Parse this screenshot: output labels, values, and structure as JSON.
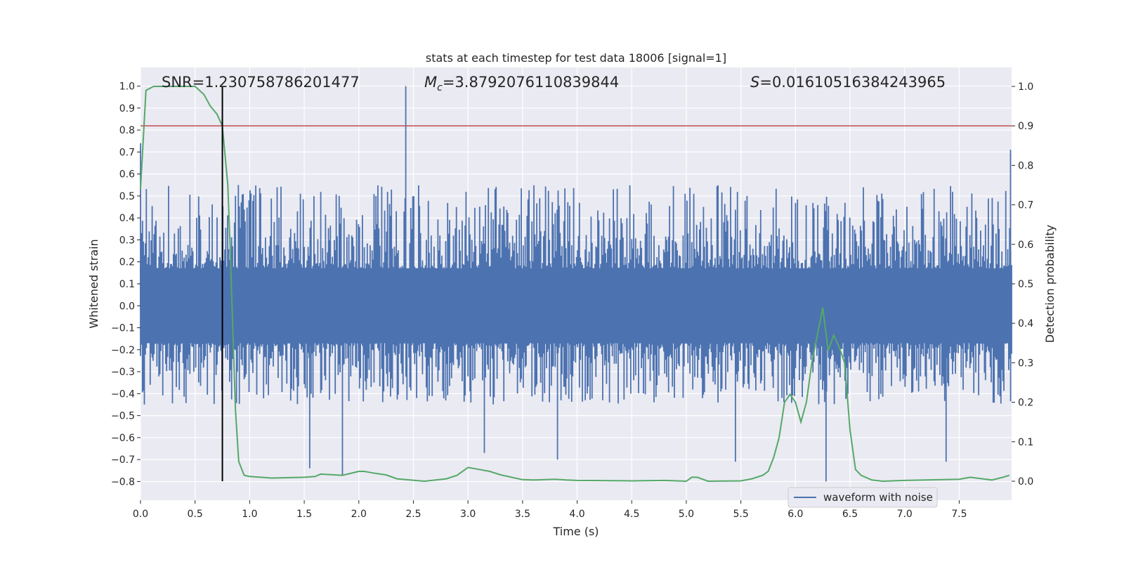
{
  "chart_data": {
    "type": "line",
    "title": "stats at each timestep for test data 18006 [signal=1]",
    "xlabel": "Time (s)",
    "ylabel": "Whitened strain",
    "y2label": "Detection probability",
    "xlim": [
      0.0,
      7.98
    ],
    "ylim": [
      -0.885,
      1.085
    ],
    "y2lim": [
      -0.048,
      1.048
    ],
    "xticks": [
      "0.0",
      "0.5",
      "1.0",
      "1.5",
      "2.0",
      "2.5",
      "3.0",
      "3.5",
      "4.0",
      "4.5",
      "5.0",
      "5.5",
      "6.0",
      "6.5",
      "7.0",
      "7.5"
    ],
    "yticks": [
      "-0.8",
      "-0.7",
      "-0.6",
      "-0.5",
      "-0.4",
      "-0.3",
      "-0.2",
      "-0.1",
      "0.0",
      "0.1",
      "0.2",
      "0.3",
      "0.4",
      "0.5",
      "0.6",
      "0.7",
      "0.8",
      "0.9",
      "1.0"
    ],
    "y2ticks": [
      "0.0",
      "0.1",
      "0.2",
      "0.3",
      "0.4",
      "0.5",
      "0.6",
      "0.7",
      "0.8",
      "0.9",
      "1.0"
    ],
    "grid": true,
    "legend": {
      "position": "lower-right",
      "entries": [
        "waveform with noise"
      ]
    },
    "annotations": {
      "snr": "SNR=1.230758786201477",
      "mc_symbol": "M",
      "mc_sub": "c",
      "mc_value": "=3.8792076110839844",
      "s_symbol": "S",
      "s_value": "=0.01610516384243965"
    },
    "series": [
      {
        "name": "waveform with noise",
        "kind": "strain",
        "color": "#4c72b0",
        "sample_rate_hz": 2048,
        "dense_envelope": [
          -0.17,
          0.17
        ],
        "typical_range": [
          -0.45,
          0.55
        ],
        "peaks": [
          {
            "x": 2.43,
            "y": 1.0
          },
          {
            "x": 7.97,
            "y": 0.71
          },
          {
            "x": 0.0,
            "y": 0.74
          },
          {
            "x": 1.55,
            "y": -0.74
          },
          {
            "x": 1.85,
            "y": -0.77
          },
          {
            "x": 3.15,
            "y": -0.67
          },
          {
            "x": 3.82,
            "y": -0.7
          },
          {
            "x": 5.45,
            "y": -0.71
          },
          {
            "x": 6.28,
            "y": -0.8
          },
          {
            "x": 7.38,
            "y": -0.71
          }
        ]
      },
      {
        "kind": "detection-probability",
        "color": "#55a868",
        "axis": "right",
        "x": [
          0.0,
          0.05,
          0.12,
          0.2,
          0.3,
          0.4,
          0.5,
          0.58,
          0.64,
          0.7,
          0.75,
          0.8,
          0.82,
          0.87,
          0.9,
          0.95,
          1.0,
          1.2,
          1.5,
          1.6,
          1.65,
          1.85,
          2.0,
          2.05,
          2.15,
          2.25,
          2.35,
          2.6,
          2.8,
          2.9,
          3.0,
          3.1,
          3.2,
          3.3,
          3.5,
          3.6,
          3.7,
          3.8,
          3.9,
          4.0,
          4.5,
          4.8,
          5.0,
          5.05,
          5.1,
          5.2,
          5.5,
          5.6,
          5.7,
          5.75,
          5.8,
          5.85,
          5.9,
          5.95,
          6.0,
          6.05,
          6.1,
          6.15,
          6.2,
          6.25,
          6.3,
          6.35,
          6.4,
          6.45,
          6.5,
          6.55,
          6.6,
          6.7,
          6.8,
          7.0,
          7.5,
          7.6,
          7.8,
          7.9,
          7.96
        ],
        "y": [
          0.74,
          0.99,
          1.0,
          1.0,
          1.0,
          1.0,
          1.0,
          0.98,
          0.95,
          0.93,
          0.9,
          0.75,
          0.6,
          0.18,
          0.05,
          0.015,
          0.012,
          0.008,
          0.01,
          0.012,
          0.018,
          0.015,
          0.025,
          0.025,
          0.02,
          0.016,
          0.006,
          0.0,
          0.006,
          0.015,
          0.035,
          0.03,
          0.025,
          0.016,
          0.004,
          0.003,
          0.004,
          0.005,
          0.003,
          0.002,
          0.001,
          0.002,
          0.0,
          0.01,
          0.01,
          0.0,
          0.001,
          0.006,
          0.015,
          0.025,
          0.06,
          0.11,
          0.2,
          0.22,
          0.2,
          0.15,
          0.2,
          0.3,
          0.37,
          0.44,
          0.33,
          0.37,
          0.34,
          0.3,
          0.13,
          0.03,
          0.015,
          0.003,
          0.0,
          0.002,
          0.005,
          0.01,
          0.003,
          0.01,
          0.015
        ]
      }
    ],
    "threshold_line": {
      "axis": "right",
      "y": 0.9,
      "color": "#c44e52"
    },
    "marker_line": {
      "x": 0.75,
      "color": "#000000"
    }
  }
}
